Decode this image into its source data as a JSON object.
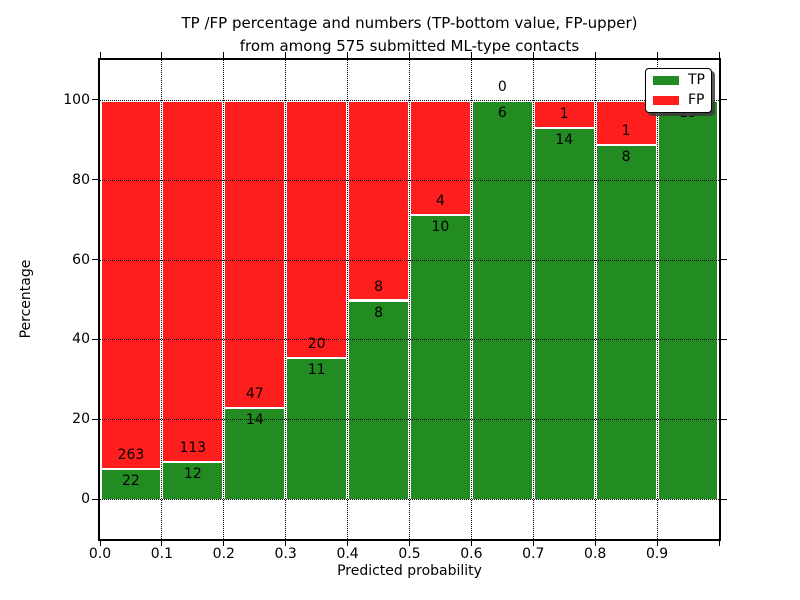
{
  "chart_data": {
    "type": "bar",
    "stacked": true,
    "title": "TP /FP percentage and numbers (TP-bottom value, FP-upper)\nfrom among 575 submitted ML-type contacts",
    "title_line1": "TP /FP percentage and numbers (TP-bottom value, FP-upper)",
    "title_line2": "from among 575 submitted ML-type contacts",
    "xlabel": "Predicted probability",
    "ylabel": "Percentage",
    "xlim": [
      0.0,
      1.0
    ],
    "ylim": [
      -10,
      110
    ],
    "grid": true,
    "x_tick_labels": [
      "0.0",
      "0.1",
      "0.2",
      "0.3",
      "0.4",
      "0.5",
      "0.6",
      "0.7",
      "0.8",
      "0.9"
    ],
    "y_tick_values": [
      0,
      20,
      40,
      60,
      80,
      100
    ],
    "total_contacts": 575,
    "categories": [
      "0.0-0.1",
      "0.1-0.2",
      "0.2-0.3",
      "0.3-0.4",
      "0.4-0.5",
      "0.5-0.6",
      "0.6-0.7",
      "0.7-0.8",
      "0.8-0.9",
      "0.9-1.0"
    ],
    "series": [
      {
        "name": "TP",
        "color": "#228B22",
        "counts": [
          22,
          12,
          14,
          11,
          8,
          10,
          6,
          14,
          8,
          13
        ]
      },
      {
        "name": "FP",
        "color": "#FF1E1E",
        "counts": [
          263,
          113,
          47,
          20,
          8,
          4,
          0,
          1,
          1,
          0
        ]
      }
    ],
    "tp_percent": [
      7.7,
      9.6,
      23.0,
      35.5,
      50.0,
      71.4,
      100.0,
      93.3,
      88.9,
      100.0
    ],
    "legend": {
      "position": "upper right",
      "entries": [
        "TP",
        "FP"
      ]
    }
  },
  "colors": {
    "tp_green": "#228B22",
    "fp_red": "#FF1E1E",
    "frame": "#000000",
    "background": "#ffffff"
  }
}
